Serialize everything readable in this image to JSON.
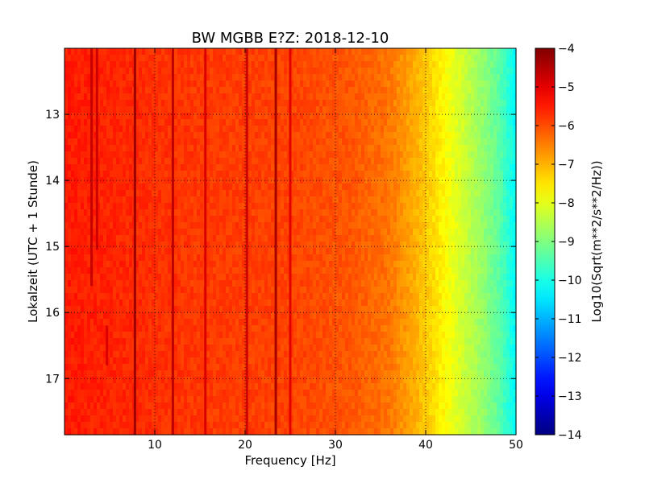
{
  "chart_data": {
    "type": "heatmap",
    "title": "BW MGBB E?Z: 2018-12-10",
    "xlabel": "Frequency [Hz]",
    "ylabel": "Lokalzeit (UTC + 1 Stunde)",
    "xlim": [
      0,
      50
    ],
    "ylim": [
      17.85,
      12.0
    ],
    "x_ticks": [
      10,
      20,
      30,
      40,
      50
    ],
    "y_ticks": [
      13,
      14,
      15,
      16,
      17
    ],
    "grid": true,
    "colormap": "jet",
    "colorbar": {
      "label": "Log10(Sqrt(m**2/s**2/Hz))",
      "range": [
        -14,
        -4
      ],
      "ticks": [
        -4,
        -5,
        -6,
        -7,
        -8,
        -9,
        -10,
        -11,
        -12,
        -13,
        -14
      ]
    },
    "values": {
      "background_level_by_frequency": [
        {
          "hz": 0,
          "log10": -5.5
        },
        {
          "hz": 5,
          "log10": -5.6
        },
        {
          "hz": 15,
          "log10": -5.8
        },
        {
          "hz": 25,
          "log10": -5.9
        },
        {
          "hz": 32,
          "log10": -6.1
        },
        {
          "hz": 36,
          "log10": -6.4
        },
        {
          "hz": 38,
          "log10": -6.8
        },
        {
          "hz": 40,
          "log10": -7.2
        },
        {
          "hz": 42,
          "log10": -7.7
        },
        {
          "hz": 44,
          "log10": -8.2
        },
        {
          "hz": 46,
          "log10": -8.7
        },
        {
          "hz": 48,
          "log10": -9.3
        },
        {
          "hz": 49.5,
          "log10": -10.0
        },
        {
          "hz": 50,
          "log10": -10.3
        }
      ],
      "narrowband_lines": [
        {
          "hz": 3.0,
          "t_start": 12.0,
          "t_end": 15.6,
          "log10": -4.7
        },
        {
          "hz": 3.6,
          "t_start": 12.0,
          "t_end": 15.05,
          "log10": -4.8
        },
        {
          "hz": 4.7,
          "t_start": 16.2,
          "t_end": 16.8,
          "log10": -4.9
        },
        {
          "hz": 7.8,
          "t_start": 12.0,
          "t_end": 17.85,
          "log10": -4.3
        },
        {
          "hz": 12.0,
          "t_start": 12.0,
          "t_end": 17.85,
          "log10": -4.6
        },
        {
          "hz": 15.6,
          "t_start": 12.0,
          "t_end": 17.85,
          "log10": -4.9
        },
        {
          "hz": 20.2,
          "t_start": 12.0,
          "t_end": 17.85,
          "log10": -4.8
        },
        {
          "hz": 23.4,
          "t_start": 12.0,
          "t_end": 17.85,
          "log10": -4.4
        },
        {
          "hz": 25.0,
          "t_start": 12.0,
          "t_end": 17.85,
          "log10": -5.0
        }
      ]
    }
  }
}
